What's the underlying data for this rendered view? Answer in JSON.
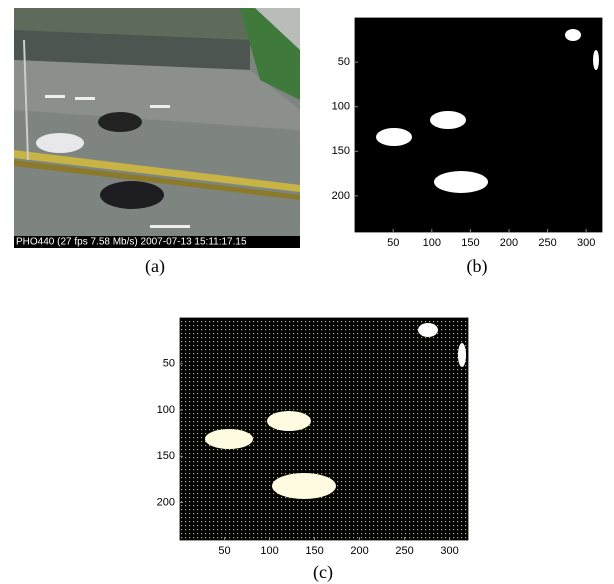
{
  "panels": [
    {
      "caption": "(a)",
      "overlay_text": "PHO440 (27 fps  7.58 Mb/s) 2007-07-13 15:11:17.15"
    },
    {
      "caption": "(b)",
      "xlim": [
        0.5,
        320.5
      ],
      "ylim": [
        0.5,
        240.5
      ],
      "xticks": [
        50,
        100,
        150,
        200,
        250,
        300
      ],
      "yticks": [
        50,
        100,
        150,
        200
      ]
    },
    {
      "caption": "(c)",
      "xlim": [
        0.5,
        320.5
      ],
      "ylim": [
        0.5,
        240.5
      ],
      "xticks": [
        50,
        100,
        150,
        200,
        250,
        300
      ],
      "yticks": [
        50,
        100,
        150,
        200
      ]
    }
  ]
}
